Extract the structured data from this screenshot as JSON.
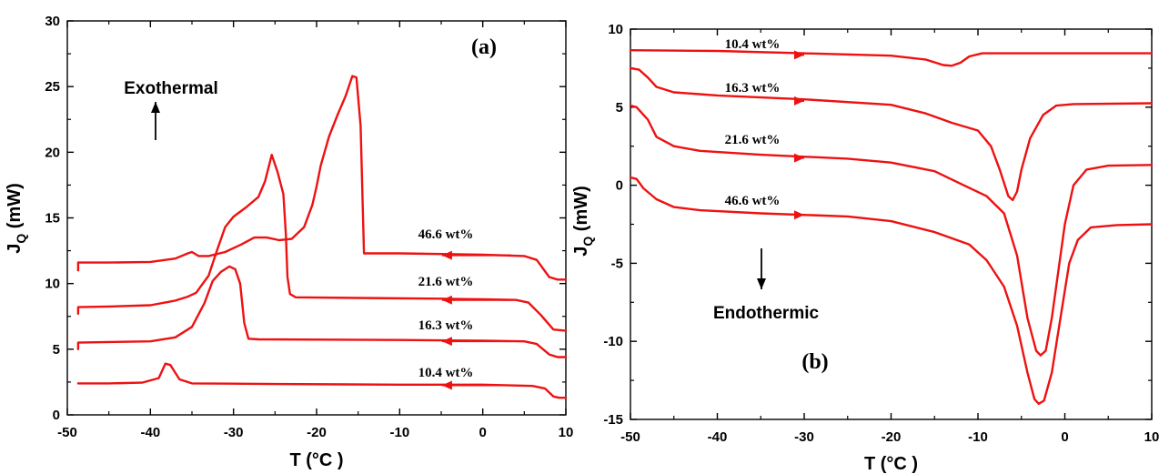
{
  "chart_data": [
    {
      "type": "line",
      "panel_label": "(a)",
      "xlabel": "T (°C )",
      "ylabel": "J",
      "ylabel_sub": "Q",
      "ylabel_suffix": " (mW)",
      "xlim": [
        -50,
        10
      ],
      "ylim": [
        0,
        30
      ],
      "xticks": [
        -50,
        -40,
        -30,
        -20,
        -10,
        0,
        10
      ],
      "yticks": [
        0,
        5,
        10,
        15,
        20,
        25,
        30
      ],
      "annotations": {
        "direction_label": "Exothermal"
      },
      "arrow_direction": "left",
      "series": [
        {
          "name": "10.4 wt%",
          "color": "#ee1111",
          "points": [
            [
              -48.7,
              2.4
            ],
            [
              -45,
              2.4
            ],
            [
              -41,
              2.45
            ],
            [
              -39,
              2.8
            ],
            [
              -38.2,
              3.9
            ],
            [
              -37.6,
              3.8
            ],
            [
              -36.5,
              2.7
            ],
            [
              -35,
              2.4
            ],
            [
              -25,
              2.35
            ],
            [
              -10,
              2.3
            ],
            [
              0,
              2.3
            ],
            [
              6,
              2.2
            ],
            [
              7.5,
              2.0
            ],
            [
              8.5,
              1.4
            ],
            [
              9.2,
              1.3
            ],
            [
              10,
              1.3
            ]
          ]
        },
        {
          "name": "16.3 wt%",
          "color": "#ee1111",
          "points": [
            [
              -48.7,
              5.0
            ],
            [
              -48.7,
              5.5
            ],
            [
              -45,
              5.55
            ],
            [
              -40,
              5.6
            ],
            [
              -37,
              5.9
            ],
            [
              -35,
              6.7
            ],
            [
              -33.5,
              8.5
            ],
            [
              -32.5,
              10.2
            ],
            [
              -31.5,
              10.9
            ],
            [
              -30.5,
              11.3
            ],
            [
              -29.8,
              11.1
            ],
            [
              -29.2,
              10.0
            ],
            [
              -28.7,
              7.0
            ],
            [
              -28.2,
              5.8
            ],
            [
              -27,
              5.75
            ],
            [
              -10,
              5.7
            ],
            [
              0,
              5.65
            ],
            [
              5,
              5.6
            ],
            [
              6.5,
              5.4
            ],
            [
              8,
              4.6
            ],
            [
              9,
              4.4
            ],
            [
              10,
              4.4
            ]
          ]
        },
        {
          "name": "21.6 wt%",
          "color": "#ee1111",
          "points": [
            [
              -48.7,
              7.7
            ],
            [
              -48.7,
              8.2
            ],
            [
              -45,
              8.25
            ],
            [
              -40,
              8.35
            ],
            [
              -37,
              8.7
            ],
            [
              -35.5,
              9.0
            ],
            [
              -34.5,
              9.3
            ],
            [
              -33,
              10.6
            ],
            [
              -32,
              12.5
            ],
            [
              -31,
              14.3
            ],
            [
              -30,
              15.1
            ],
            [
              -28.5,
              15.8
            ],
            [
              -27,
              16.6
            ],
            [
              -26.2,
              17.8
            ],
            [
              -25.4,
              19.8
            ],
            [
              -24.7,
              18.5
            ],
            [
              -24,
              16.8
            ],
            [
              -23.7,
              13.8
            ],
            [
              -23.5,
              10.5
            ],
            [
              -23.2,
              9.2
            ],
            [
              -22.5,
              8.95
            ],
            [
              -15,
              8.9
            ],
            [
              -5,
              8.85
            ],
            [
              0,
              8.8
            ],
            [
              4,
              8.75
            ],
            [
              5.5,
              8.55
            ],
            [
              7,
              7.6
            ],
            [
              8.5,
              6.5
            ],
            [
              10,
              6.4
            ]
          ]
        },
        {
          "name": "46.6 wt%",
          "color": "#ee1111",
          "points": [
            [
              -48.7,
              11.0
            ],
            [
              -48.7,
              11.6
            ],
            [
              -45,
              11.6
            ],
            [
              -40,
              11.65
            ],
            [
              -37,
              11.9
            ],
            [
              -35.5,
              12.3
            ],
            [
              -35,
              12.4
            ],
            [
              -34.2,
              12.1
            ],
            [
              -33,
              12.1
            ],
            [
              -31,
              12.4
            ],
            [
              -29,
              13.0
            ],
            [
              -27.5,
              13.5
            ],
            [
              -26,
              13.5
            ],
            [
              -24.5,
              13.3
            ],
            [
              -23,
              13.4
            ],
            [
              -21.5,
              14.3
            ],
            [
              -20.5,
              16.0
            ],
            [
              -20,
              17.4
            ],
            [
              -19.5,
              19.0
            ],
            [
              -18.5,
              21.2
            ],
            [
              -17.5,
              22.8
            ],
            [
              -16.5,
              24.3
            ],
            [
              -15.7,
              25.8
            ],
            [
              -15.2,
              25.7
            ],
            [
              -14.7,
              22.0
            ],
            [
              -14.3,
              12.3
            ],
            [
              -10,
              12.3
            ],
            [
              0,
              12.2
            ],
            [
              5,
              12.1
            ],
            [
              6.5,
              11.8
            ],
            [
              8,
              10.5
            ],
            [
              9,
              10.3
            ],
            [
              10,
              10.3
            ]
          ]
        }
      ]
    },
    {
      "type": "line",
      "panel_label": "(b)",
      "xlabel": "T (°C )",
      "ylabel": "J",
      "ylabel_sub": "Q",
      "ylabel_suffix": " (mW)",
      "xlim": [
        -50,
        10
      ],
      "ylim": [
        -15,
        10
      ],
      "xticks": [
        -50,
        -40,
        -30,
        -20,
        -10,
        0,
        10
      ],
      "yticks": [
        -15,
        -10,
        -5,
        0,
        5,
        10
      ],
      "annotations": {
        "direction_label": "Endothermic"
      },
      "arrow_direction": "right",
      "series": [
        {
          "name": "10.4 wt%",
          "color": "#ee1111",
          "points": [
            [
              -50,
              8.65
            ],
            [
              -40,
              8.6
            ],
            [
              -30,
              8.45
            ],
            [
              -20,
              8.3
            ],
            [
              -16,
              8.05
            ],
            [
              -14,
              7.7
            ],
            [
              -13,
              7.65
            ],
            [
              -12,
              7.85
            ],
            [
              -11,
              8.25
            ],
            [
              -9.5,
              8.45
            ],
            [
              0,
              8.45
            ],
            [
              10,
              8.45
            ]
          ]
        },
        {
          "name": "16.3 wt%",
          "color": "#ee1111",
          "points": [
            [
              -50,
              7.5
            ],
            [
              -49,
              7.4
            ],
            [
              -48,
              6.9
            ],
            [
              -47,
              6.3
            ],
            [
              -45,
              5.95
            ],
            [
              -40,
              5.75
            ],
            [
              -30,
              5.5
            ],
            [
              -20,
              5.15
            ],
            [
              -16,
              4.6
            ],
            [
              -13,
              4.0
            ],
            [
              -10,
              3.5
            ],
            [
              -8.5,
              2.5
            ],
            [
              -7.5,
              1.0
            ],
            [
              -6.5,
              -0.7
            ],
            [
              -6,
              -0.95
            ],
            [
              -5.5,
              -0.4
            ],
            [
              -5,
              1.0
            ],
            [
              -4,
              3.0
            ],
            [
              -2.5,
              4.5
            ],
            [
              -1,
              5.1
            ],
            [
              1,
              5.2
            ],
            [
              10,
              5.25
            ]
          ]
        },
        {
          "name": "21.6 wt%",
          "color": "#ee1111",
          "points": [
            [
              -50,
              5.1
            ],
            [
              -49.3,
              5.0
            ],
            [
              -48,
              4.2
            ],
            [
              -47,
              3.1
            ],
            [
              -45,
              2.5
            ],
            [
              -42,
              2.2
            ],
            [
              -35,
              1.95
            ],
            [
              -25,
              1.7
            ],
            [
              -20,
              1.45
            ],
            [
              -15,
              0.9
            ],
            [
              -12,
              0.1
            ],
            [
              -9,
              -0.7
            ],
            [
              -7,
              -1.8
            ],
            [
              -5.5,
              -4.5
            ],
            [
              -4.3,
              -8.5
            ],
            [
              -3.3,
              -10.6
            ],
            [
              -2.8,
              -10.9
            ],
            [
              -2.2,
              -10.6
            ],
            [
              -1.5,
              -8.5
            ],
            [
              0,
              -2.5
            ],
            [
              1,
              0.0
            ],
            [
              2.5,
              1.0
            ],
            [
              5,
              1.25
            ],
            [
              10,
              1.3
            ]
          ]
        },
        {
          "name": "46.6 wt%",
          "color": "#ee1111",
          "points": [
            [
              -50,
              0.5
            ],
            [
              -49.3,
              0.4
            ],
            [
              -48.5,
              -0.2
            ],
            [
              -47,
              -0.9
            ],
            [
              -45,
              -1.4
            ],
            [
              -42,
              -1.6
            ],
            [
              -35,
              -1.8
            ],
            [
              -25,
              -2.0
            ],
            [
              -20,
              -2.3
            ],
            [
              -15,
              -3.0
            ],
            [
              -11,
              -3.8
            ],
            [
              -9,
              -4.8
            ],
            [
              -7,
              -6.5
            ],
            [
              -5.5,
              -9.0
            ],
            [
              -4.3,
              -12.0
            ],
            [
              -3.5,
              -13.7
            ],
            [
              -3,
              -14.0
            ],
            [
              -2.4,
              -13.8
            ],
            [
              -1.5,
              -12.0
            ],
            [
              -0.5,
              -8.5
            ],
            [
              0.5,
              -5.0
            ],
            [
              1.5,
              -3.5
            ],
            [
              3,
              -2.7
            ],
            [
              6,
              -2.55
            ],
            [
              10,
              -2.5
            ]
          ]
        }
      ]
    }
  ]
}
